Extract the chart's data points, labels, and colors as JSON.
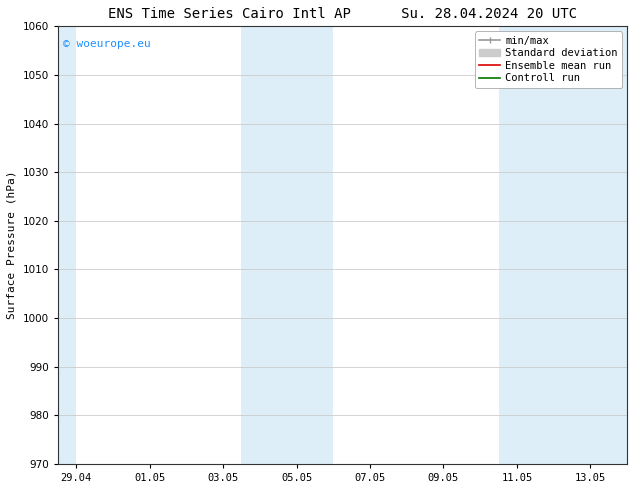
{
  "title_left": "ENS Time Series Cairo Intl AP",
  "title_right": "Su. 28.04.2024 20 UTC",
  "ylabel": "Surface Pressure (hPa)",
  "ylim": [
    970,
    1060
  ],
  "yticks": [
    970,
    980,
    990,
    1000,
    1010,
    1020,
    1030,
    1040,
    1050,
    1060
  ],
  "xtick_labels": [
    "29.04",
    "01.05",
    "03.05",
    "05.05",
    "07.05",
    "09.05",
    "11.05",
    "13.05"
  ],
  "xtick_positions": [
    0,
    2,
    4,
    6,
    8,
    10,
    12,
    14
  ],
  "xlim": [
    -0.5,
    15.0
  ],
  "shaded_regions": [
    {
      "start": -0.5,
      "end": 0.0
    },
    {
      "start": 4.5,
      "end": 7.0
    },
    {
      "start": 11.5,
      "end": 15.0
    }
  ],
  "shaded_color": "#ddeef9",
  "watermark_text": "© woeurope.eu",
  "watermark_color": "#1E90FF",
  "legend_entries": [
    {
      "label": "min/max",
      "color": "#999999",
      "lw": 1.2
    },
    {
      "label": "Standard deviation",
      "color": "#cccccc",
      "lw": 5
    },
    {
      "label": "Ensemble mean run",
      "color": "#dd0000",
      "lw": 1.2
    },
    {
      "label": "Controll run",
      "color": "#007700",
      "lw": 1.2
    }
  ],
  "bg_color": "#ffffff",
  "grid_color": "#cccccc",
  "title_fontsize": 10,
  "ylabel_fontsize": 8,
  "tick_fontsize": 7.5,
  "legend_fontsize": 7.5
}
